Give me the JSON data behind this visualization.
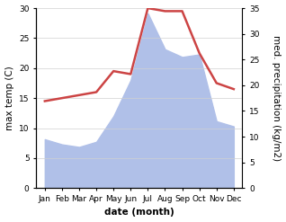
{
  "months": [
    "Jan",
    "Feb",
    "Mar",
    "Apr",
    "May",
    "Jun",
    "Jul",
    "Aug",
    "Sep",
    "Oct",
    "Nov",
    "Dec"
  ],
  "x": [
    0,
    1,
    2,
    3,
    4,
    5,
    6,
    7,
    8,
    9,
    10,
    11
  ],
  "temp_max": [
    14.5,
    15.0,
    15.5,
    16.0,
    19.5,
    19.0,
    30.0,
    29.5,
    29.5,
    22.5,
    17.5,
    16.5
  ],
  "precipitation": [
    9.5,
    8.5,
    8.0,
    9.0,
    14.0,
    21.0,
    34.0,
    27.0,
    25.5,
    26.0,
    13.0,
    12.0
  ],
  "temp_ylim": [
    0,
    30
  ],
  "precip_ylim": [
    0,
    35
  ],
  "temp_yticks": [
    0,
    5,
    10,
    15,
    20,
    25,
    30
  ],
  "precip_yticks": [
    0,
    5,
    10,
    15,
    20,
    25,
    30,
    35
  ],
  "temp_color": "#cc4444",
  "precip_fill_color": "#b0c0e8",
  "precip_fill_alpha": 1.0,
  "xlabel": "date (month)",
  "ylabel_left": "max temp (C)",
  "ylabel_right": "med. precipitation (kg/m2)",
  "background_color": "#ffffff",
  "grid_color": "#d0d0d0",
  "line_width": 1.8,
  "tick_fontsize": 6.5,
  "label_fontsize": 7.5
}
